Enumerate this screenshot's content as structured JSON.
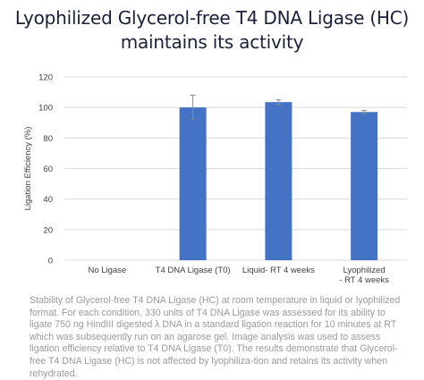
{
  "title_line1": "Lyophilized Glycerol-free T4 DNA Ligase (HC)",
  "title_line2": "maintains its activity",
  "caption": "Stability of Glycerol-free T4 DNA Ligase (HC) at room temperature in liquid or lyophilized format. For each condition, 330 units of T4 DNA Ligase was assessed for its ability to ligate 750 ng HindIII digested λ DNA in a standard ligation reaction for 10 minutes at RT which was subsequently run on an agarose gel. Image analysis was used to assess ligation efficiency relative to T4 DNA Ligase (T0). The results demonstrate that Glycerol-free T4 DNA Ligase (HC) is not affected by lyophiliza-tion and retains its activity when rehydrated.",
  "colors": {
    "bar": "#4472c4",
    "grid": "#d9d9d9",
    "title": "#1a1f3a",
    "caption": "#9a9a9a"
  },
  "chart_data": {
    "type": "bar",
    "title": "",
    "ylabel": "Ligation Efficiency (%)",
    "xlabel": "",
    "ylim": [
      0,
      120
    ],
    "yticks": [
      0,
      20,
      40,
      60,
      80,
      100,
      120
    ],
    "categories": [
      "No Ligase",
      "T4 DNA Ligase (T0)",
      "Liquid- RT 4 weeks",
      "Lyophilized - RT 4 weeks"
    ],
    "category_lines": [
      [
        "No Ligase"
      ],
      [
        "T4 DNA Ligase (T0)"
      ],
      [
        "Liquid- RT 4 weeks"
      ],
      [
        "Lyophilized",
        "-  RT 4 weeks"
      ]
    ],
    "values": [
      0,
      100,
      103.5,
      97
    ],
    "error": [
      0,
      8,
      1.5,
      1
    ],
    "grid": true,
    "legend": "none"
  }
}
